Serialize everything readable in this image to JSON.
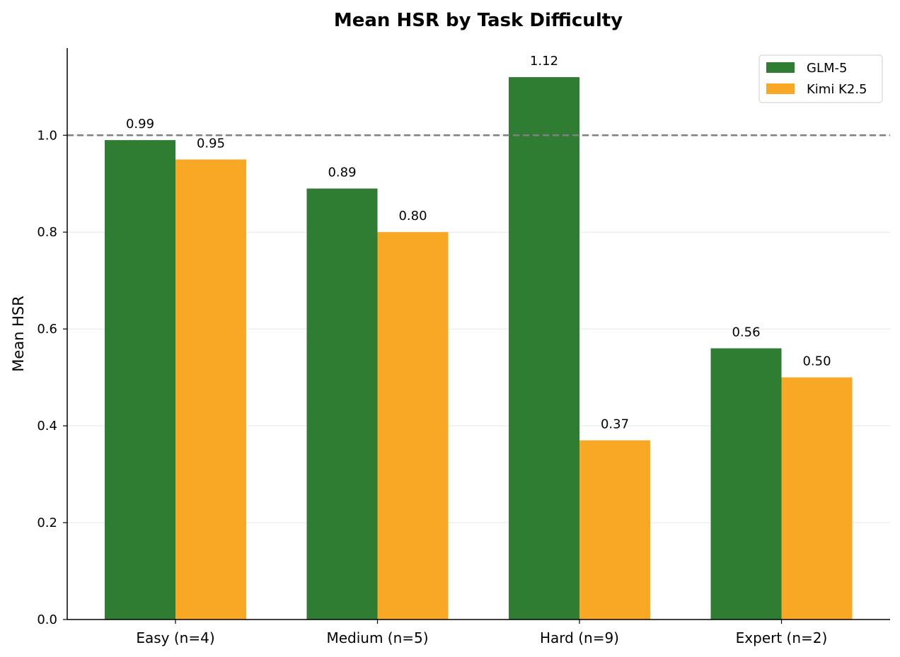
{
  "chart_data": {
    "type": "bar",
    "title": "Mean HSR by Task Difficulty",
    "xlabel": "",
    "ylabel": "Mean HSR",
    "categories": [
      "Easy (n=4)",
      "Medium (n=5)",
      "Hard (n=9)",
      "Expert (n=2)"
    ],
    "series": [
      {
        "name": "GLM-5",
        "color": "#2e7d32",
        "values": [
          0.99,
          0.89,
          1.12,
          0.56
        ],
        "labels": [
          "0.99",
          "0.89",
          "1.12",
          "0.56"
        ]
      },
      {
        "name": "Kimi K2.5",
        "color": "#f9a825",
        "values": [
          0.95,
          0.8,
          0.37,
          0.5
        ],
        "labels": [
          "0.95",
          "0.80",
          "0.37",
          "0.50"
        ]
      }
    ],
    "ylim": [
      0,
      1.18
    ],
    "yticks": [
      0.0,
      0.2,
      0.4,
      0.6,
      0.8,
      1.0
    ],
    "ytick_labels": [
      "0.0",
      "0.2",
      "0.4",
      "0.6",
      "0.8",
      "1.0"
    ],
    "reference_line": {
      "y": 1.0,
      "style": "dashed",
      "color": "#808080"
    },
    "grid": "horizontal",
    "legend_position": "top-right"
  }
}
